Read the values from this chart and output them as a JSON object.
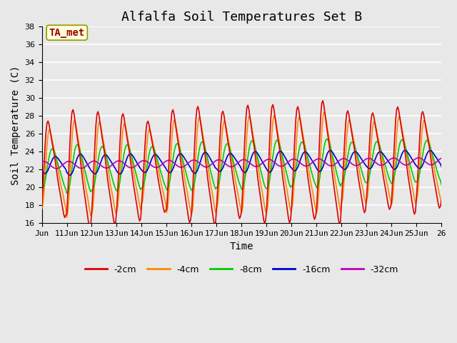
{
  "title": "Alfalfa Soil Temperatures Set B",
  "xlabel": "Time",
  "ylabel": "Soil Temperature (C)",
  "ylim": [
    16,
    38
  ],
  "background_color": "#e8e8e8",
  "plot_bg_color": "#e8e8e8",
  "grid_color": "white",
  "annotation_text": "TA_met",
  "annotation_bg": "#ffffdd",
  "annotation_border": "#999900",
  "annotation_text_color": "#990000",
  "series_colors": [
    "#dd0000",
    "#ff8800",
    "#00cc00",
    "#0000cc",
    "#bb00bb"
  ],
  "series_labels": [
    "-2cm",
    "-4cm",
    "-8cm",
    "-16cm",
    "-32cm"
  ],
  "xtick_labels": [
    "Jun",
    "11Jun",
    "12Jun",
    "13Jun",
    "14Jun",
    "15Jun",
    "16Jun",
    "17Jun",
    "18Jun",
    "19Jun",
    "20Jun",
    "21Jun",
    "22Jun",
    "23Jun",
    "24Jun",
    "25Jun",
    "26"
  ],
  "title_fontsize": 13,
  "axis_label_fontsize": 10,
  "tick_fontsize": 8,
  "legend_fontsize": 9
}
